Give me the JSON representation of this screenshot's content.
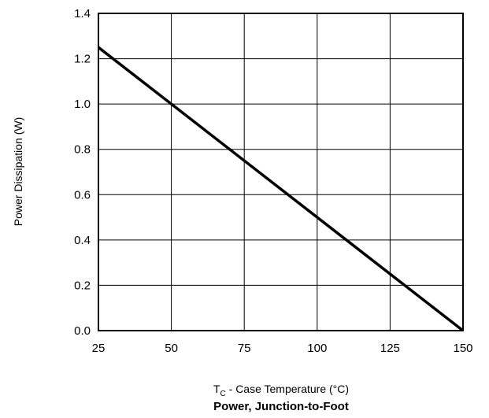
{
  "chart_data": {
    "type": "line",
    "title": "Power, Junction-to-Foot",
    "xlabel_main": "T",
    "xlabel_sub": "C",
    "xlabel_rest": " - Case Temperature (°C)",
    "ylabel": "Power Dissipation (W)",
    "xlim": [
      25,
      150
    ],
    "ylim": [
      0.0,
      1.4
    ],
    "x_ticks": [
      25,
      50,
      75,
      100,
      125,
      150
    ],
    "y_ticks": [
      0.0,
      0.2,
      0.4,
      0.6,
      0.8,
      1.0,
      1.2,
      1.4
    ],
    "x_tick_labels": [
      "25",
      "50",
      "75",
      "100",
      "125",
      "150"
    ],
    "y_tick_labels": [
      "0.0",
      "0.2",
      "0.4",
      "0.6",
      "0.8",
      "1.0",
      "1.2",
      "1.4"
    ],
    "grid": true,
    "series": [
      {
        "x": [
          25,
          150
        ],
        "y": [
          1.25,
          0.0
        ]
      }
    ]
  }
}
